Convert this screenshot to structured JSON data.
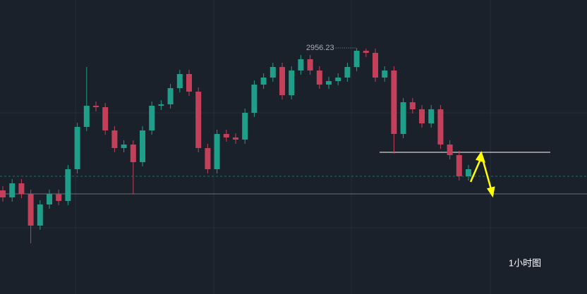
{
  "chart_data": {
    "type": "candlestick",
    "caption": "1小时图",
    "max_label": "2956.23",
    "ylim": [
      2781.73,
      2990.23
    ],
    "up_color": "#1f9e89",
    "down_color": "#c4405a",
    "categories": [
      null,
      null,
      null,
      null,
      null,
      null,
      null,
      null,
      null,
      null,
      null,
      null,
      null,
      null,
      null,
      null,
      null,
      null,
      null,
      null,
      null,
      null,
      null,
      null,
      null,
      null,
      null,
      null,
      null,
      null,
      null,
      null,
      null,
      null,
      null,
      null,
      null,
      null,
      null,
      null,
      null,
      null,
      null,
      null,
      null,
      null,
      null,
      null,
      null,
      null,
      null
    ],
    "open": [
      2855.23,
      2850.23,
      2860.23,
      2852.73,
      2830.23,
      2845.23,
      2852.73,
      2847.73,
      2870.23,
      2900.23,
      2915.23,
      2914.23,
      2897.73,
      2885.23,
      2887.73,
      2875.23,
      2897.73,
      2915.23,
      2916.23,
      2927.73,
      2937.73,
      2925.23,
      2885.23,
      2870.23,
      2895.23,
      2892.73,
      2891.23,
      2910.23,
      2930.23,
      2935.23,
      2942.73,
      2922.73,
      2940.23,
      2948.23,
      2940.23,
      2930.23,
      2932.73,
      2935.23,
      2942.73,
      2954.23,
      2952.73,
      2935.23,
      2940.23,
      2895.23,
      2917.73,
      2912.73,
      2902.73,
      2912.73,
      2887.73,
      2880.23,
      2865.23
    ],
    "high": [
      2858.23,
      2863.23,
      2863.23,
      2855.73,
      2848.23,
      2855.73,
      2855.73,
      2873.23,
      2903.23,
      2942.73,
      2918.23,
      2917.23,
      2900.73,
      2890.73,
      2890.73,
      2900.73,
      2918.23,
      2919.23,
      2930.73,
      2940.73,
      2940.73,
      2928.23,
      2888.23,
      2898.23,
      2898.23,
      2895.73,
      2913.23,
      2933.23,
      2938.23,
      2945.73,
      2945.73,
      2943.23,
      2951.23,
      2951.23,
      2943.23,
      2935.73,
      2938.23,
      2945.73,
      2956.23,
      2955.73,
      2955.73,
      2943.23,
      2943.23,
      2920.73,
      2920.73,
      2915.73,
      2915.73,
      2915.73,
      2890.73,
      2883.23,
      2873.23
    ],
    "low": [
      2847.23,
      2847.23,
      2849.73,
      2817.73,
      2827.23,
      2842.23,
      2844.73,
      2844.73,
      2867.23,
      2897.23,
      2911.23,
      2894.73,
      2882.23,
      2882.23,
      2852.73,
      2872.23,
      2894.73,
      2912.23,
      2913.23,
      2924.73,
      2922.23,
      2882.23,
      2867.23,
      2867.23,
      2889.73,
      2888.23,
      2888.23,
      2907.23,
      2927.23,
      2932.23,
      2919.73,
      2919.73,
      2937.23,
      2937.23,
      2927.23,
      2927.23,
      2929.73,
      2932.23,
      2939.73,
      2949.73,
      2932.23,
      2932.23,
      2881.23,
      2892.23,
      2909.73,
      2899.73,
      2899.73,
      2884.73,
      2877.23,
      2862.23,
      2862.23
    ],
    "close": [
      2850.23,
      2860.23,
      2852.73,
      2830.23,
      2845.23,
      2852.73,
      2847.73,
      2870.23,
      2900.23,
      2915.23,
      2914.23,
      2897.73,
      2885.23,
      2887.73,
      2875.23,
      2897.73,
      2915.23,
      2916.23,
      2927.73,
      2937.73,
      2925.23,
      2885.23,
      2870.23,
      2895.23,
      2892.73,
      2891.23,
      2910.23,
      2930.23,
      2935.23,
      2942.73,
      2922.73,
      2940.23,
      2948.23,
      2940.23,
      2930.23,
      2932.73,
      2935.23,
      2942.73,
      2954.23,
      2952.73,
      2935.23,
      2940.23,
      2895.23,
      2917.73,
      2912.73,
      2902.73,
      2912.73,
      2887.73,
      2880.23,
      2865.23,
      2870.23
    ]
  }
}
